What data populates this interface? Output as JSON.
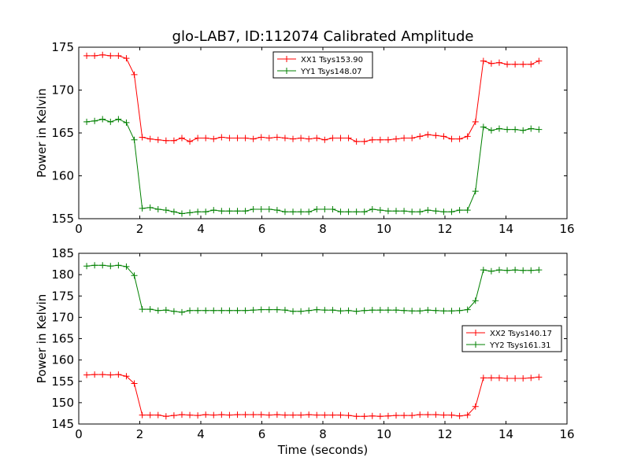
{
  "figure": {
    "title": "glo-LAB7, ID:112074 Calibrated Amplitude"
  },
  "chart_data": [
    {
      "type": "line",
      "title": "glo-LAB7, ID:112074 Calibrated Amplitude",
      "xlabel": "",
      "ylabel": "Power in Kelvin",
      "xlim": [
        0,
        16
      ],
      "ylim": [
        155,
        175
      ],
      "xticks": [
        0,
        2,
        4,
        6,
        8,
        10,
        12,
        14,
        16
      ],
      "yticks": [
        155,
        160,
        165,
        170,
        175
      ],
      "grid": false,
      "legend_position": "top-center",
      "x": [
        0.26,
        0.52,
        0.78,
        1.04,
        1.3,
        1.56,
        1.82,
        2.08,
        2.34,
        2.6,
        2.86,
        3.12,
        3.38,
        3.64,
        3.9,
        4.16,
        4.42,
        4.68,
        4.94,
        5.2,
        5.46,
        5.72,
        5.98,
        6.24,
        6.5,
        6.76,
        7.02,
        7.28,
        7.54,
        7.8,
        8.06,
        8.32,
        8.58,
        8.84,
        9.1,
        9.36,
        9.62,
        9.88,
        10.14,
        10.4,
        10.66,
        10.92,
        11.18,
        11.44,
        11.7,
        11.96,
        12.22,
        12.48,
        12.74,
        13.0,
        13.26,
        13.52,
        13.78,
        14.04,
        14.3,
        14.56,
        14.82,
        15.08
      ],
      "series": [
        {
          "name": "XX1 Tsys153.90",
          "color": "#ff0000",
          "values": [
            174.0,
            174.0,
            174.1,
            174.0,
            174.0,
            173.7,
            171.8,
            164.5,
            164.3,
            164.2,
            164.1,
            164.1,
            164.4,
            164.0,
            164.4,
            164.4,
            164.3,
            164.5,
            164.4,
            164.4,
            164.4,
            164.3,
            164.5,
            164.4,
            164.5,
            164.4,
            164.3,
            164.4,
            164.3,
            164.4,
            164.2,
            164.4,
            164.4,
            164.4,
            164.0,
            164.0,
            164.2,
            164.2,
            164.2,
            164.3,
            164.4,
            164.4,
            164.6,
            164.8,
            164.7,
            164.6,
            164.3,
            164.3,
            164.6,
            166.3,
            173.4,
            173.1,
            173.2,
            173.0,
            173.0,
            173.0,
            173.0,
            173.4
          ]
        },
        {
          "name": "YY1 Tsys148.07",
          "color": "#008000",
          "values": [
            166.3,
            166.4,
            166.6,
            166.3,
            166.6,
            166.2,
            164.2,
            156.2,
            156.3,
            156.1,
            156.0,
            155.8,
            155.6,
            155.7,
            155.8,
            155.8,
            156.0,
            155.9,
            155.9,
            155.9,
            155.9,
            156.1,
            156.1,
            156.1,
            156.0,
            155.8,
            155.8,
            155.8,
            155.8,
            156.1,
            156.1,
            156.1,
            155.8,
            155.8,
            155.8,
            155.8,
            156.1,
            156.0,
            155.9,
            155.9,
            155.9,
            155.8,
            155.8,
            156.0,
            155.9,
            155.8,
            155.8,
            156.0,
            156.0,
            158.2,
            165.7,
            165.3,
            165.5,
            165.4,
            165.4,
            165.3,
            165.5,
            165.4
          ]
        }
      ]
    },
    {
      "type": "line",
      "title": "",
      "xlabel": "Time (seconds)",
      "ylabel": "Power in Kelvin",
      "xlim": [
        0,
        16
      ],
      "ylim": [
        145,
        185
      ],
      "xticks": [
        0,
        2,
        4,
        6,
        8,
        10,
        12,
        14,
        16
      ],
      "yticks": [
        145,
        150,
        155,
        160,
        165,
        170,
        175,
        180,
        185
      ],
      "grid": false,
      "legend_position": "center-right",
      "x": [
        0.26,
        0.52,
        0.78,
        1.04,
        1.3,
        1.56,
        1.82,
        2.08,
        2.34,
        2.6,
        2.86,
        3.12,
        3.38,
        3.64,
        3.9,
        4.16,
        4.42,
        4.68,
        4.94,
        5.2,
        5.46,
        5.72,
        5.98,
        6.24,
        6.5,
        6.76,
        7.02,
        7.28,
        7.54,
        7.8,
        8.06,
        8.32,
        8.58,
        8.84,
        9.1,
        9.36,
        9.62,
        9.88,
        10.14,
        10.4,
        10.66,
        10.92,
        11.18,
        11.44,
        11.7,
        11.96,
        12.22,
        12.48,
        12.74,
        13.0,
        13.26,
        13.52,
        13.78,
        14.04,
        14.3,
        14.56,
        14.82,
        15.08
      ],
      "series": [
        {
          "name": "XX2 Tsys140.17",
          "color": "#ff0000",
          "values": [
            156.5,
            156.6,
            156.6,
            156.5,
            156.6,
            156.2,
            154.5,
            147.1,
            147.1,
            147.1,
            146.8,
            147.0,
            147.2,
            147.1,
            147.0,
            147.2,
            147.1,
            147.2,
            147.1,
            147.2,
            147.2,
            147.2,
            147.2,
            147.1,
            147.2,
            147.1,
            147.1,
            147.1,
            147.2,
            147.1,
            147.1,
            147.1,
            147.1,
            147.0,
            146.8,
            146.8,
            146.9,
            146.8,
            146.9,
            147.0,
            147.0,
            147.0,
            147.2,
            147.2,
            147.2,
            147.1,
            147.1,
            146.9,
            147.1,
            149.1,
            155.8,
            155.8,
            155.8,
            155.7,
            155.7,
            155.7,
            155.8,
            156.0
          ]
        },
        {
          "name": "YY2 Tsys161.31",
          "color": "#008000",
          "values": [
            182.0,
            182.2,
            182.2,
            182.0,
            182.2,
            181.9,
            179.8,
            171.9,
            171.9,
            171.6,
            171.7,
            171.4,
            171.2,
            171.6,
            171.6,
            171.6,
            171.6,
            171.6,
            171.6,
            171.6,
            171.6,
            171.7,
            171.8,
            171.8,
            171.8,
            171.7,
            171.4,
            171.4,
            171.6,
            171.8,
            171.7,
            171.7,
            171.5,
            171.6,
            171.4,
            171.6,
            171.7,
            171.7,
            171.7,
            171.7,
            171.6,
            171.5,
            171.5,
            171.7,
            171.6,
            171.5,
            171.5,
            171.6,
            171.8,
            173.9,
            181.1,
            180.8,
            181.1,
            181.0,
            181.1,
            181.0,
            181.0,
            181.1
          ]
        }
      ]
    }
  ]
}
